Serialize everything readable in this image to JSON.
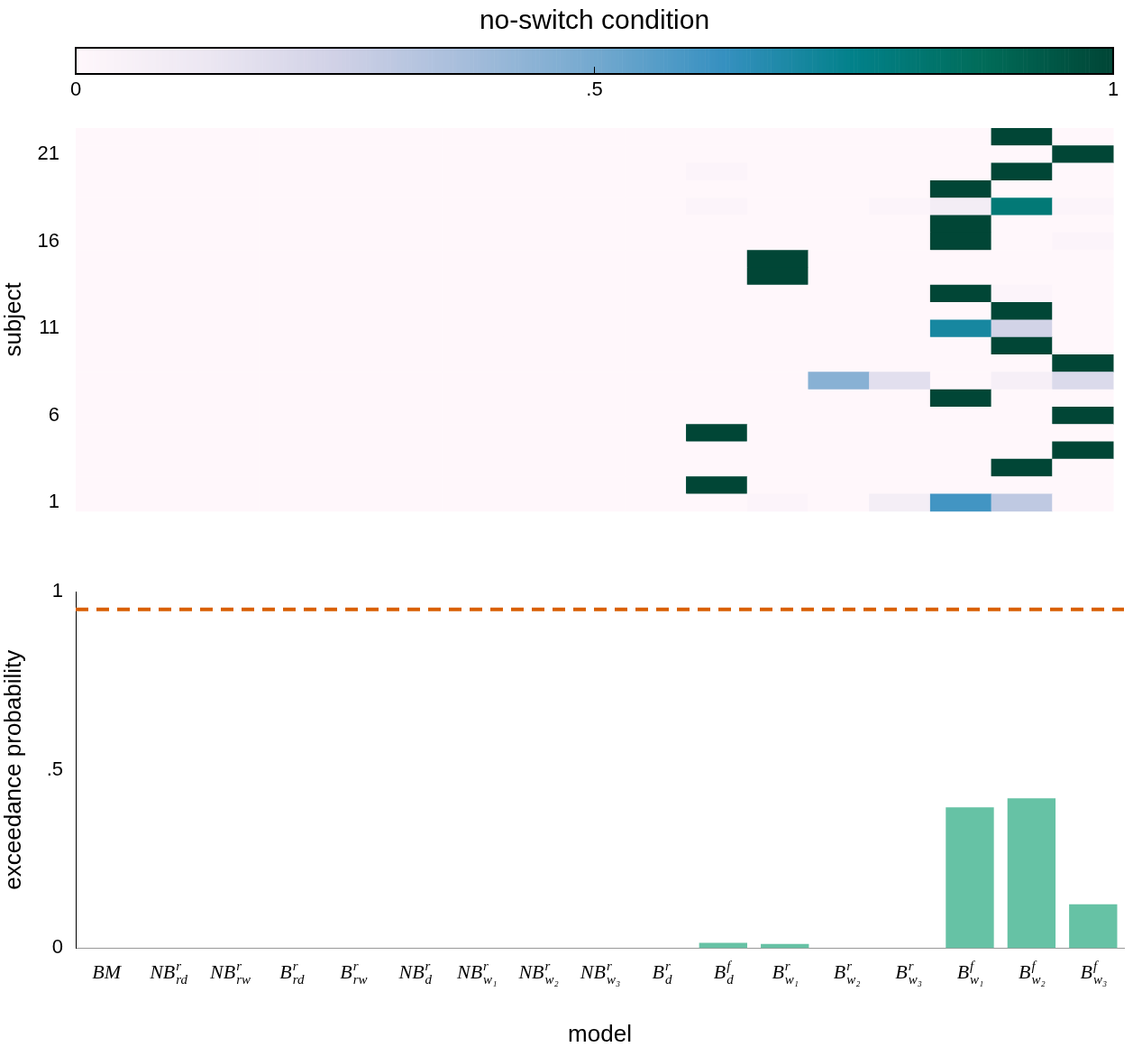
{
  "chart_data": [
    {
      "type": "heatmap",
      "clabel": "no-switch condition",
      "ylabel": "subject",
      "clim": [
        0,
        1
      ],
      "cticks": [
        0,
        {
          "value": 0.5,
          "label": ".5"
        },
        1
      ],
      "categories": [
        null,
        null,
        null,
        null,
        null,
        null,
        null,
        null,
        null,
        null,
        null,
        null,
        null,
        null,
        null,
        null,
        null
      ],
      "y_categories": [
        null,
        "21",
        null,
        null,
        null,
        null,
        "16",
        null,
        null,
        null,
        null,
        "11",
        null,
        null,
        null,
        null,
        "6",
        null,
        null,
        null,
        null,
        "1"
      ],
      "cells": [
        [
          0,
          0,
          0,
          0,
          0,
          0,
          0,
          0,
          0,
          0,
          0,
          0,
          0,
          0,
          0,
          1,
          0
        ],
        [
          0,
          0,
          0,
          0,
          0,
          0,
          0,
          0,
          0,
          0,
          0,
          0,
          0,
          0,
          0,
          0,
          1
        ],
        [
          0,
          0,
          0,
          0,
          0,
          0,
          0,
          0,
          0,
          0,
          0.02,
          0,
          0,
          0,
          0,
          1,
          0
        ],
        [
          0,
          0,
          0,
          0,
          0,
          0,
          0,
          0,
          0,
          0,
          0,
          0,
          0,
          0,
          1,
          0,
          0
        ],
        [
          0,
          0,
          0,
          0,
          0,
          0,
          0,
          0,
          0,
          0,
          0.02,
          0,
          0,
          0.02,
          0.08,
          0.8,
          0.02
        ],
        [
          0,
          0,
          0,
          0,
          0,
          0,
          0,
          0,
          0,
          0,
          0,
          0,
          0,
          0,
          1,
          0,
          0
        ],
        [
          0,
          0,
          0,
          0,
          0,
          0,
          0,
          0,
          0,
          0,
          0,
          0,
          0,
          0,
          1,
          0,
          0.02
        ],
        [
          0,
          0,
          0,
          0,
          0,
          0,
          0,
          0,
          0,
          0,
          0,
          1,
          0,
          0,
          0,
          0,
          0
        ],
        [
          0,
          0,
          0,
          0,
          0,
          0,
          0,
          0,
          0,
          0,
          0,
          1,
          0,
          0,
          0,
          0,
          0
        ],
        [
          0,
          0,
          0,
          0,
          0,
          0,
          0,
          0,
          0,
          0,
          0,
          0,
          0,
          0,
          1,
          0.02,
          0
        ],
        [
          0,
          0,
          0,
          0,
          0,
          0,
          0,
          0,
          0,
          0,
          0,
          0,
          0,
          0,
          0,
          1,
          0
        ],
        [
          0,
          0,
          0,
          0,
          0,
          0,
          0,
          0,
          0,
          0,
          0,
          0,
          0,
          0,
          0.7,
          0.24,
          0
        ],
        [
          0,
          0,
          0,
          0,
          0,
          0,
          0,
          0,
          0,
          0,
          0,
          0,
          0,
          0,
          0,
          1,
          0
        ],
        [
          0,
          0,
          0,
          0,
          0,
          0,
          0,
          0,
          0,
          0,
          0,
          0,
          0,
          0,
          0,
          0,
          1
        ],
        [
          0,
          0,
          0,
          0,
          0,
          0,
          0,
          0,
          0,
          0,
          0,
          0,
          0.45,
          0.17,
          0,
          0.06,
          0.2
        ],
        [
          0,
          0,
          0,
          0,
          0,
          0,
          0,
          0,
          0,
          0,
          0,
          0,
          0,
          0,
          1,
          0,
          0
        ],
        [
          0,
          0,
          0,
          0,
          0,
          0,
          0,
          0,
          0,
          0,
          0,
          0,
          0,
          0,
          0,
          0,
          1
        ],
        [
          0,
          0,
          0,
          0,
          0,
          0,
          0,
          0,
          0,
          0,
          1,
          0,
          0,
          0,
          0,
          0,
          0
        ],
        [
          0,
          0,
          0,
          0,
          0,
          0,
          0,
          0,
          0,
          0,
          0,
          0,
          0,
          0,
          0,
          0,
          1
        ],
        [
          0,
          0,
          0,
          0,
          0,
          0,
          0,
          0,
          0,
          0,
          0,
          0,
          0,
          0,
          0,
          1,
          0
        ],
        [
          0,
          0,
          0,
          0,
          0,
          0,
          0,
          0,
          0,
          0,
          1,
          0,
          0,
          0,
          0,
          0,
          0
        ],
        [
          0,
          0,
          0,
          0,
          0,
          0,
          0,
          0,
          0,
          0,
          0,
          0.02,
          0,
          0.07,
          0.6,
          0.3,
          0
        ]
      ]
    },
    {
      "type": "bar",
      "xlabel": "model",
      "ylabel": "exceedance probability",
      "color": "#66c2a5",
      "categories": [
        "BM",
        "NB$^{r}$$_{rd}$",
        "NB$^{r}$$_{rw}$",
        "B$^{r}$$_{rd}$",
        "B$^{r}$$_{rw}$",
        "NB$^{r}$$_{d}$",
        "NB$^{r}$$_{w₁}$",
        "NB$^{r}$$_{w₂}$",
        "NB$^{r}$$_{w₃}$",
        "B$^{r}$$_{d}$",
        "B$^{f}$$_{d}$",
        "B$^{r}$$_{w₁}$",
        "B$^{r}$$_{w₂}$",
        "B$^{r}$$_{w₃}$",
        "B$^{f}$$_{w₁}$",
        "B$^{f}$$_{w₂}$",
        "B$^{f}$$_{w₃}$"
      ],
      "values": [
        0,
        0,
        0,
        0,
        0,
        0,
        0,
        0,
        0,
        0,
        0.015,
        0.012,
        0,
        0,
        0.395,
        0.42,
        0.123
      ],
      "ylim": [
        0,
        1
      ],
      "yticks": [
        0,
        {
          "value": 0.5,
          "label": ".5"
        },
        1
      ],
      "ref_lines": [
        {
          "axis": "y",
          "value": 0.95,
          "color": "#d95f02",
          "line_style": "dashed"
        }
      ]
    }
  ]
}
